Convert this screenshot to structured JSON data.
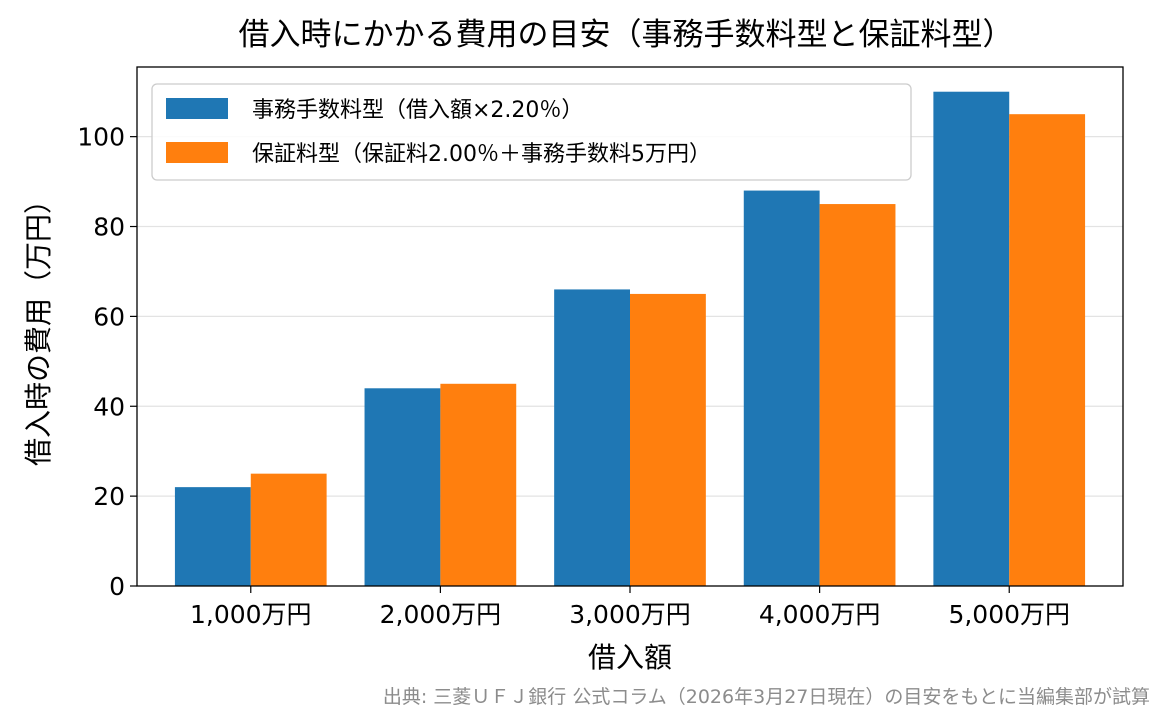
{
  "chart_data": {
    "type": "bar",
    "title": "借入時にかかる費用の目安（事務手数料型と保証料型）",
    "xlabel": "借入額",
    "ylabel": "借入時の費用（万円）",
    "categories": [
      "1,000万円",
      "2,000万円",
      "3,000万円",
      "4,000万円",
      "5,000万円"
    ],
    "series": [
      {
        "name": "事務手数料型（借入額×2.20％）",
        "values": [
          22,
          44,
          66,
          88,
          110
        ],
        "color": "#1f77b4"
      },
      {
        "name": "保証料型（保証料2.00％＋事務手数料5万円）",
        "values": [
          25,
          45,
          65,
          85,
          105
        ],
        "color": "#ff7f0e"
      }
    ],
    "ylim": [
      0,
      115.5
    ],
    "yticks": [
      0,
      20,
      40,
      60,
      80,
      100
    ],
    "grid": "y",
    "legend_position": "top-left",
    "source": "出典: 三菱ＵＦＪ銀行 公式コラム（2026年3月27日現在）の目安をもとに当編集部が試算"
  }
}
